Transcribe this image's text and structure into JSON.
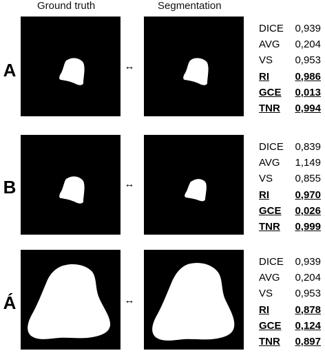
{
  "headers": {
    "ground_truth": "Ground truth",
    "segmentation": "Segmentation"
  },
  "arrow_symbol": "↔",
  "rows": [
    {
      "label": "A",
      "metrics": [
        {
          "name": "DICE",
          "value": "0,939",
          "emphasis": false
        },
        {
          "name": "AVG",
          "value": "0,204",
          "emphasis": false
        },
        {
          "name": "VS",
          "value": "0,953",
          "emphasis": false
        },
        {
          "name": "RI",
          "value": "0,986",
          "emphasis": true
        },
        {
          "name": "GCE",
          "value": "0,013",
          "emphasis": true
        },
        {
          "name": "TNR",
          "value": "0,994",
          "emphasis": true
        }
      ]
    },
    {
      "label": "B",
      "metrics": [
        {
          "name": "DICE",
          "value": "0,839",
          "emphasis": false
        },
        {
          "name": "AVG",
          "value": "1,149",
          "emphasis": false
        },
        {
          "name": "VS",
          "value": "0,855",
          "emphasis": false
        },
        {
          "name": "RI",
          "value": "0,970",
          "emphasis": true
        },
        {
          "name": "GCE",
          "value": "0,026",
          "emphasis": true
        },
        {
          "name": "TNR",
          "value": "0,999",
          "emphasis": true
        }
      ]
    },
    {
      "label": "Á",
      "metrics": [
        {
          "name": "DICE",
          "value": "0,939",
          "emphasis": false
        },
        {
          "name": "AVG",
          "value": "0,204",
          "emphasis": false
        },
        {
          "name": "VS",
          "value": "0,953",
          "emphasis": false
        },
        {
          "name": "RI",
          "value": "0,878",
          "emphasis": true
        },
        {
          "name": "GCE",
          "value": "0,124",
          "emphasis": true
        },
        {
          "name": "TNR",
          "value": "0,897",
          "emphasis": true
        }
      ]
    }
  ],
  "colors": {
    "background": "#000000",
    "mask": "#ffffff"
  }
}
